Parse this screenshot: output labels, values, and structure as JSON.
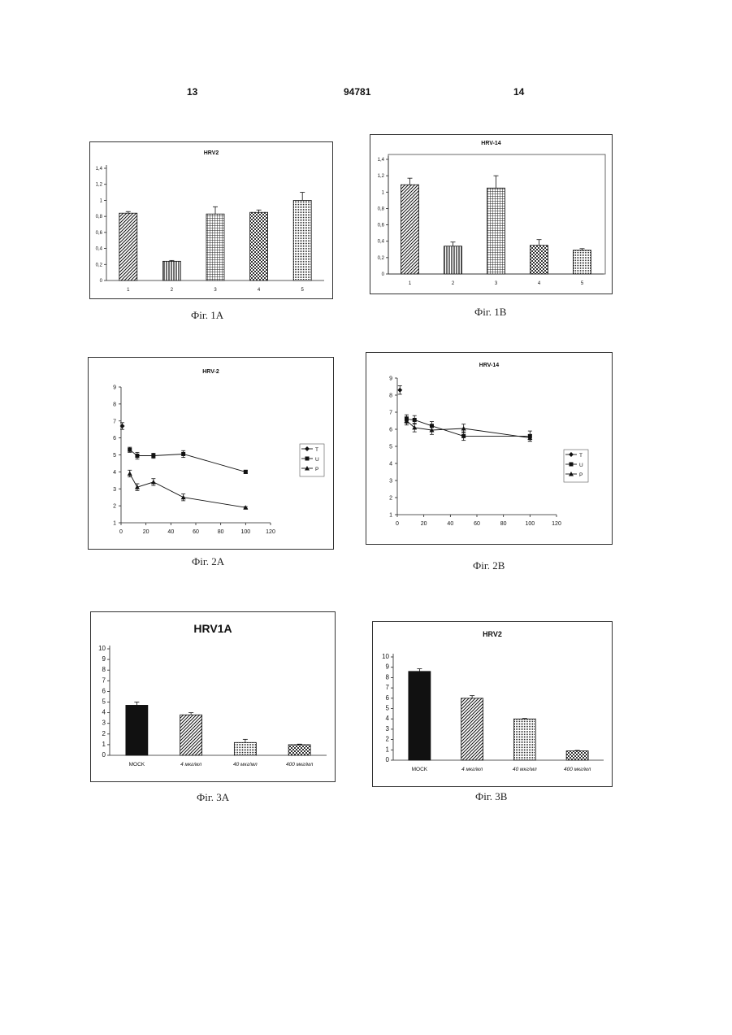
{
  "page": {
    "left_number": "13",
    "patent_number": "94781",
    "right_number": "14"
  },
  "figures": [
    {
      "id": "1a",
      "caption": "Фіг. 1A"
    },
    {
      "id": "1b",
      "caption": "Фіг. 1B"
    },
    {
      "id": "2a",
      "caption": "Фіг. 2A"
    },
    {
      "id": "2b",
      "caption": "Фіг. 2B"
    },
    {
      "id": "3a",
      "caption": "Фіг. 3A"
    },
    {
      "id": "3b",
      "caption": "Фіг. 3B"
    }
  ],
  "chart_data": [
    {
      "type": "bar",
      "title": "HRV2",
      "categories": [
        "1",
        "2",
        "3",
        "4",
        "5"
      ],
      "values": [
        0.84,
        0.24,
        0.83,
        0.85,
        1.0
      ],
      "errors": [
        0.02,
        0.01,
        0.09,
        0.03,
        0.1
      ],
      "patterns": [
        "diag",
        "vlines",
        "grid",
        "checker",
        "dense"
      ],
      "ylim": [
        0,
        1.4
      ],
      "yticks": [
        "0",
        "0,2",
        "0,4",
        "0,6",
        "0,8",
        "1",
        "1,2",
        "1,4"
      ]
    },
    {
      "type": "bar",
      "title": "HRV-14",
      "categories": [
        "1",
        "2",
        "3",
        "4",
        "5"
      ],
      "values": [
        1.09,
        0.34,
        1.05,
        0.35,
        0.29
      ],
      "errors": [
        0.08,
        0.05,
        0.15,
        0.07,
        0.02
      ],
      "patterns": [
        "diag",
        "vlines",
        "grid",
        "checker",
        "dense"
      ],
      "ylim": [
        0,
        1.4
      ],
      "yticks": [
        "0",
        "0,2",
        "0,4",
        "0,6",
        "0,8",
        "1",
        "1,2",
        "1,4"
      ]
    },
    {
      "type": "line",
      "title": "HRV-2",
      "xlim": [
        0,
        120
      ],
      "ylim": [
        1,
        9
      ],
      "xticks": [
        "0",
        "20",
        "40",
        "60",
        "80",
        "100",
        "120"
      ],
      "yticks": [
        "1",
        "2",
        "3",
        "4",
        "5",
        "6",
        "7",
        "8",
        "9"
      ],
      "legend": "right",
      "series": [
        {
          "name": "T",
          "marker": "diamond",
          "points": [
            [
              1,
              6.7
            ]
          ],
          "errors": [
            0.2
          ]
        },
        {
          "name": "U",
          "marker": "square",
          "points": [
            [
              7,
              5.3
            ],
            [
              13,
              4.95
            ],
            [
              26,
              4.95
            ],
            [
              50,
              5.05
            ],
            [
              100,
              4.0
            ]
          ],
          "errors": [
            0.15,
            0.2,
            0.15,
            0.2,
            0.1
          ]
        },
        {
          "name": "P",
          "marker": "triangle",
          "points": [
            [
              7,
              3.9
            ],
            [
              13,
              3.1
            ],
            [
              26,
              3.4
            ],
            [
              50,
              2.5
            ],
            [
              100,
              1.9
            ]
          ],
          "errors": [
            0.2,
            0.2,
            0.2,
            0.2,
            0.05
          ]
        }
      ]
    },
    {
      "type": "line",
      "title": "HRV-14",
      "xlim": [
        0,
        120
      ],
      "ylim": [
        1,
        9
      ],
      "xticks": [
        "0",
        "20",
        "40",
        "60",
        "80",
        "100",
        "120"
      ],
      "yticks": [
        "1",
        "2",
        "3",
        "4",
        "5",
        "6",
        "7",
        "8",
        "9"
      ],
      "legend": "right",
      "series": [
        {
          "name": "T",
          "marker": "diamond",
          "points": [
            [
              2,
              8.3
            ]
          ],
          "errors": [
            0.25
          ]
        },
        {
          "name": "U",
          "marker": "square",
          "points": [
            [
              7,
              6.6
            ],
            [
              13,
              6.55
            ],
            [
              26,
              6.2
            ],
            [
              50,
              5.6
            ],
            [
              100,
              5.6
            ]
          ],
          "errors": [
            0.25,
            0.25,
            0.25,
            0.25,
            0.3
          ]
        },
        {
          "name": "P",
          "marker": "triangle",
          "points": [
            [
              7,
              6.5
            ],
            [
              13,
              6.1
            ],
            [
              26,
              5.95
            ],
            [
              50,
              6.05
            ],
            [
              100,
              5.5
            ]
          ],
          "errors": [
            0.25,
            0.25,
            0.25,
            0.25,
            0.2
          ]
        }
      ]
    },
    {
      "type": "bar",
      "title": "HRV1A",
      "categories": [
        "MOCK",
        "4 мкг/мл",
        "40 мкг/мл",
        "400 мкг/мл"
      ],
      "values": [
        4.7,
        3.8,
        1.2,
        1.0
      ],
      "errors": [
        0.3,
        0.2,
        0.3,
        0.05
      ],
      "patterns": [
        "solid",
        "diag",
        "dense",
        "checker"
      ],
      "ylim": [
        0,
        10
      ],
      "yticks": [
        "0",
        "1",
        "2",
        "3",
        "4",
        "5",
        "6",
        "7",
        "8",
        "9",
        "10"
      ]
    },
    {
      "type": "bar",
      "title": "HRV2",
      "categories": [
        "MOCK",
        "4 мкг/мл",
        "40 мкг/мл",
        "400 мкг/мл"
      ],
      "values": [
        8.6,
        6.0,
        4.0,
        0.9
      ],
      "errors": [
        0.25,
        0.25,
        0.05,
        0.05
      ],
      "patterns": [
        "solid",
        "diag",
        "dense",
        "checker"
      ],
      "ylim": [
        0,
        10
      ],
      "yticks": [
        "0",
        "1",
        "2",
        "3",
        "4",
        "5",
        "6",
        "7",
        "8",
        "9",
        "10"
      ]
    }
  ]
}
